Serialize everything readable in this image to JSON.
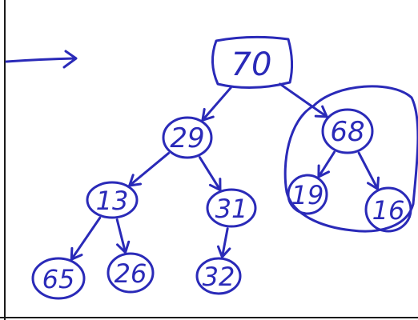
{
  "diagram": {
    "type": "binary-tree",
    "ink_color": "#2a2ab8",
    "nodes": [
      {
        "id": "n70",
        "label": "70"
      },
      {
        "id": "n29",
        "label": "29"
      },
      {
        "id": "n68",
        "label": "68"
      },
      {
        "id": "n13",
        "label": "13"
      },
      {
        "id": "n31",
        "label": "31"
      },
      {
        "id": "n19",
        "label": "19"
      },
      {
        "id": "n16",
        "label": "16"
      },
      {
        "id": "n65",
        "label": "65"
      },
      {
        "id": "n26",
        "label": "26"
      },
      {
        "id": "n32",
        "label": "32"
      }
    ],
    "edges": [
      {
        "from": "n70",
        "to": "n29"
      },
      {
        "from": "n70",
        "to": "n68"
      },
      {
        "from": "n29",
        "to": "n13"
      },
      {
        "from": "n29",
        "to": "n31"
      },
      {
        "from": "n68",
        "to": "n19"
      },
      {
        "from": "n68",
        "to": "n16"
      },
      {
        "from": "n13",
        "to": "n65"
      },
      {
        "from": "n13",
        "to": "n26"
      },
      {
        "from": "n31",
        "to": "n32"
      }
    ],
    "highlighted_subtree_root": "n68",
    "pointer_arrow": "left-arrow-pointing-right"
  }
}
